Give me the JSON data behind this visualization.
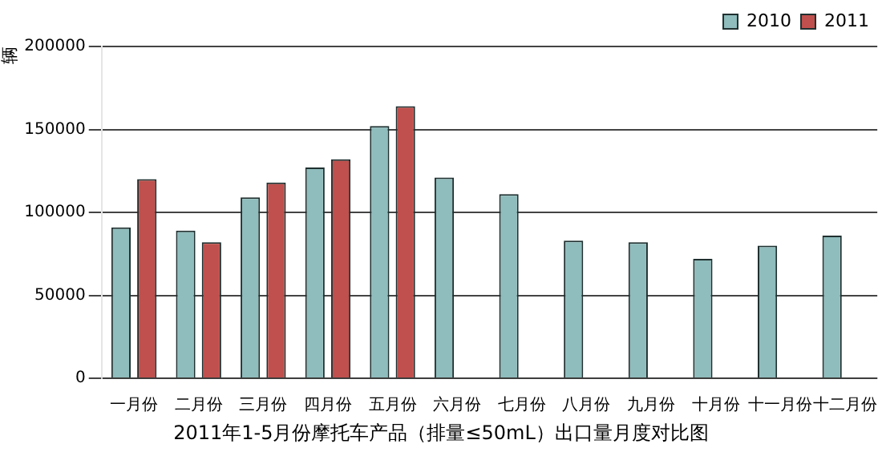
{
  "chart_data": {
    "type": "bar",
    "title": "2011年1-5月份摩托车产品（排量≤50mL）出口量月度对比图",
    "ylabel": "辆",
    "categories": [
      "一月份",
      "二月份",
      "三月份",
      "四月份",
      "五月份",
      "六月份",
      "七月份",
      "八月份",
      "九月份",
      "十月份",
      "十一月份",
      "十二月份"
    ],
    "series": [
      {
        "name": "2010",
        "color": "#8fbcbc",
        "values": [
          91000,
          89000,
          109000,
          127000,
          152000,
          121000,
          111000,
          83000,
          82000,
          72000,
          80000,
          86000
        ]
      },
      {
        "name": "2011",
        "color": "#c0504d",
        "values": [
          120000,
          82000,
          118000,
          132000,
          164000,
          null,
          null,
          null,
          null,
          null,
          null,
          null
        ]
      }
    ],
    "ylim": [
      0,
      200000
    ],
    "yticks": [
      0,
      50000,
      100000,
      150000,
      200000
    ],
    "grid": "y",
    "legend": "top right"
  }
}
